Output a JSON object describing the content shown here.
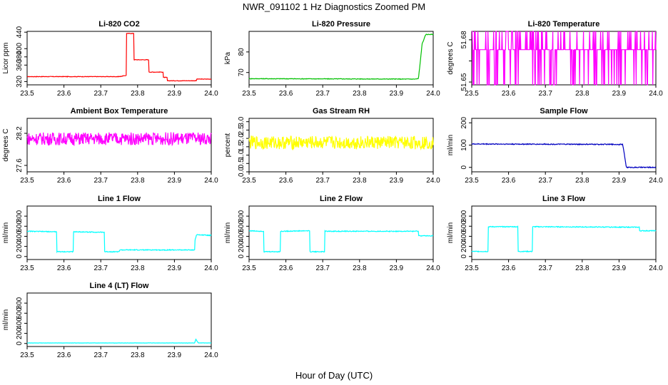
{
  "figure": {
    "title": "NWR_091102  1 Hz Diagnostics Zoomed PM",
    "xlabel": "Hour of Day (UTC)"
  },
  "chart_data": [
    {
      "type": "line",
      "title": "Li-820 CO2",
      "ylabel": "Licor ppm",
      "color": "#ff0000",
      "xlim": [
        23.5,
        24.0
      ],
      "ylim": [
        312,
        442
      ],
      "yticks": [
        320,
        360,
        380,
        400,
        440
      ],
      "xticks": [
        23.5,
        23.6,
        23.7,
        23.8,
        23.9,
        24.0
      ],
      "x": [
        23.5,
        23.75,
        23.75,
        23.77,
        23.77,
        23.79,
        23.79,
        23.83,
        23.83,
        23.87,
        23.87,
        23.88,
        23.88,
        23.96,
        23.96,
        24.0
      ],
      "y": [
        332,
        332,
        332,
        335,
        437,
        437,
        373,
        373,
        343,
        343,
        330,
        330,
        322,
        322,
        326,
        326
      ],
      "noise": 0.6
    },
    {
      "type": "line",
      "title": "Li-820 Pressure",
      "ylabel": "kPa",
      "color": "#00c000",
      "xlim": [
        23.5,
        24.0
      ],
      "ylim": [
        64,
        90
      ],
      "yticks": [
        70,
        80
      ],
      "xticks": [
        23.5,
        23.6,
        23.7,
        23.8,
        23.9,
        24.0
      ],
      "x": [
        23.5,
        23.95,
        23.96,
        23.97,
        23.98,
        24.0
      ],
      "y": [
        67,
        66.8,
        67,
        84,
        88.5,
        88.5
      ],
      "noise": 0.15
    },
    {
      "type": "line",
      "title": "Li-820 Temperature",
      "ylabel": "degrees C",
      "color": "#ff00ff",
      "xlim": [
        23.5,
        24.0
      ],
      "ylim": [
        51.648,
        51.686
      ],
      "yticks": [
        51.65,
        51.665,
        51.68
      ],
      "ytick_labels": [
        "51.65",
        "",
        "51.68"
      ],
      "xticks": [
        23.5,
        23.6,
        23.7,
        23.8,
        23.9,
        24.0
      ],
      "x": [
        23.5,
        24.0
      ],
      "y": [
        51.673,
        51.673
      ],
      "noise": 0,
      "pattern": "square",
      "levels": [
        51.648,
        51.673,
        51.686
      ]
    },
    {
      "type": "line",
      "title": "Ambient Box Temperature",
      "ylabel": "degrees C",
      "color": "#ff00ff",
      "xlim": [
        23.5,
        24.0
      ],
      "ylim": [
        27.48,
        28.48
      ],
      "yticks": [
        27.6,
        28.2
      ],
      "xticks": [
        23.5,
        23.6,
        23.7,
        23.8,
        23.9,
        24.0
      ],
      "x": [
        23.5,
        24.0
      ],
      "y": [
        28.1,
        28.1
      ],
      "noise": 0.12
    },
    {
      "type": "line",
      "title": "Gas Stream RH",
      "ylabel": "percent",
      "color": "#ffff00",
      "xlim": [
        23.5,
        24.0
      ],
      "ylim": [
        0,
        3.2
      ],
      "yticks": [
        0.0,
        0.5,
        1.0,
        1.5,
        2.0,
        2.5,
        3.0
      ],
      "ytick_labels": [
        "0.0",
        "0.5",
        "1.0",
        "1.5",
        "2.0",
        "2.5",
        "3.0"
      ],
      "xticks": [
        23.5,
        23.6,
        23.7,
        23.8,
        23.9,
        24.0
      ],
      "x": [
        23.5,
        24.0
      ],
      "y": [
        1.75,
        1.75
      ],
      "noise": 0.4
    },
    {
      "type": "line",
      "title": "Sample Flow",
      "ylabel": "ml/min",
      "color": "#0000c0",
      "xlim": [
        23.5,
        24.0
      ],
      "ylim": [
        -20,
        220
      ],
      "yticks": [
        0,
        100,
        200
      ],
      "xticks": [
        23.5,
        23.6,
        23.7,
        23.8,
        23.9,
        24.0
      ],
      "x": [
        23.5,
        23.91,
        23.91,
        23.92,
        24.0
      ],
      "y": [
        105,
        103,
        103,
        0,
        0
      ],
      "noise": 2
    },
    {
      "type": "line",
      "title": "Line 1 Flow",
      "ylabel": "ml/min",
      "color": "#00ffff",
      "xlim": [
        23.5,
        24.0
      ],
      "ylim": [
        -60,
        1000
      ],
      "yticks": [
        0,
        200,
        400,
        600,
        800
      ],
      "xticks": [
        23.5,
        23.6,
        23.7,
        23.8,
        23.9,
        24.0
      ],
      "x": [
        23.5,
        23.5,
        23.58,
        23.58,
        23.625,
        23.625,
        23.71,
        23.71,
        23.75,
        23.75,
        23.955,
        23.955,
        23.96,
        24.0
      ],
      "y": [
        120,
        500,
        490,
        95,
        95,
        490,
        480,
        95,
        95,
        130,
        130,
        300,
        430,
        420
      ],
      "noise": 8
    },
    {
      "type": "line",
      "title": "Line 2 Flow",
      "ylabel": "ml/min",
      "color": "#00ffff",
      "xlim": [
        23.5,
        24.0
      ],
      "ylim": [
        -60,
        1000
      ],
      "yticks": [
        0,
        200,
        400,
        600,
        800
      ],
      "xticks": [
        23.5,
        23.6,
        23.7,
        23.8,
        23.9,
        24.0
      ],
      "x": [
        23.5,
        23.5,
        23.54,
        23.54,
        23.585,
        23.585,
        23.665,
        23.665,
        23.705,
        23.705,
        23.96,
        23.96,
        24.0
      ],
      "y": [
        470,
        510,
        500,
        95,
        95,
        500,
        510,
        95,
        95,
        500,
        500,
        410,
        410
      ],
      "noise": 8
    },
    {
      "type": "line",
      "title": "Line 3 Flow",
      "ylabel": "ml/min",
      "color": "#00ffff",
      "xlim": [
        23.5,
        24.0
      ],
      "ylim": [
        -60,
        1000
      ],
      "yticks": [
        0,
        200,
        400,
        600,
        800
      ],
      "xticks": [
        23.5,
        23.6,
        23.7,
        23.8,
        23.9,
        24.0
      ],
      "x": [
        23.5,
        23.5,
        23.505,
        23.505,
        23.545,
        23.545,
        23.625,
        23.625,
        23.665,
        23.665,
        23.955,
        23.955,
        24.0
      ],
      "y": [
        550,
        100,
        100,
        100,
        100,
        590,
        590,
        100,
        100,
        590,
        580,
        510,
        510
      ],
      "noise": 8
    },
    {
      "type": "line",
      "title": "Line 4 (LT) Flow",
      "ylabel": "ml/min",
      "color": "#00ffff",
      "xlim": [
        23.5,
        24.0
      ],
      "ylim": [
        -60,
        1000
      ],
      "yticks": [
        0,
        200,
        400,
        600,
        800
      ],
      "xticks": [
        23.5,
        23.6,
        23.7,
        23.8,
        23.9,
        24.0
      ],
      "x": [
        23.5,
        23.955,
        23.958,
        23.962,
        23.965,
        24.0
      ],
      "y": [
        10,
        10,
        90,
        40,
        10,
        10
      ],
      "noise": 2
    }
  ]
}
